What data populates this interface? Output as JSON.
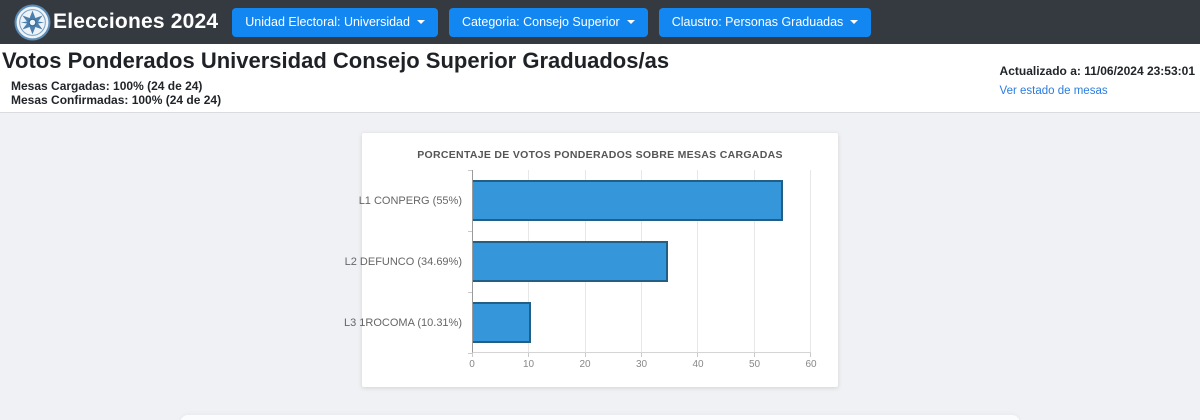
{
  "navbar": {
    "brand": "Elecciones 2024",
    "dropdowns": [
      {
        "label": "Unidad Electoral: Universidad"
      },
      {
        "label": "Categoria: Consejo Superior"
      },
      {
        "label": "Claustro: Personas Graduadas"
      }
    ]
  },
  "header": {
    "title": "Votos Ponderados Universidad Consejo Superior Graduados/as",
    "stats": [
      "Mesas Cargadas: 100% (24 de 24)",
      "Mesas Confirmadas: 100% (24 de 24)"
    ],
    "updated": "Actualizado a: 11/06/2024 23:53:01",
    "link": "Ver estado de mesas"
  },
  "chart_data": {
    "type": "bar",
    "orientation": "horizontal",
    "title": "PORCENTAJE DE VOTOS PONDERADOS SOBRE MESAS CARGADAS",
    "categories": [
      "L1 CONPERG (55%)",
      "L2 DEFUNCO (34.69%)",
      "L3 1ROCOMA (10.31%)"
    ],
    "values": [
      55,
      34.69,
      10.31
    ],
    "xlabel": "",
    "ylabel": "",
    "xlim": [
      0,
      60
    ],
    "xticks": [
      0,
      10,
      20,
      30,
      40,
      50,
      60
    ],
    "grid": true,
    "legend": false,
    "bar_color": "#3597da",
    "bar_border_color": "#235e84"
  },
  "colors": {
    "navbar_bg": "#343a40",
    "button_blue": "#1287f2",
    "link_blue": "#2a7de0",
    "content_bg": "#f0f1f4"
  }
}
